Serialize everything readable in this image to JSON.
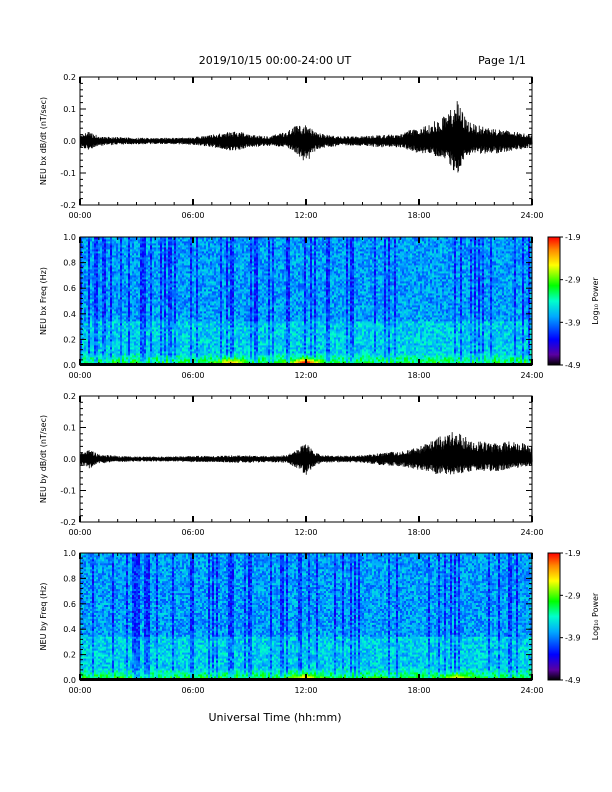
{
  "header": {
    "title": "2019/10/15  00:00-24:00 UT",
    "page": "Page 1/1"
  },
  "footer": {
    "xlabel": "Universal Time (hh:mm)"
  },
  "colors": {
    "axis": "#000000",
    "trace": "#000000"
  },
  "chart_data": [
    {
      "type": "line",
      "ylabel": "NEU bx dB/dt (nT/sec)",
      "xlabel": "Universal Time (hh:mm)",
      "xlim": [
        0,
        24
      ],
      "ylim": [
        -0.2,
        0.2
      ],
      "x_ticks": [
        "00:00",
        "06:00",
        "12:00",
        "18:00",
        "24:00"
      ],
      "y_ticks": [
        "-0.2",
        "-0.1",
        "0.0",
        "0.1",
        "0.2"
      ],
      "series": [
        {
          "x": [
            0,
            0.5,
            1,
            2,
            3,
            4,
            5,
            6,
            7,
            8,
            8.5,
            9,
            10,
            11,
            11.5,
            12,
            12.5,
            13,
            14,
            15,
            16,
            17,
            17.5,
            18,
            18.5,
            19,
            19.5,
            20,
            20.5,
            21,
            22,
            23,
            24
          ],
          "ymin": [
            -0.02,
            -0.03,
            -0.015,
            -0.012,
            -0.01,
            -0.01,
            -0.01,
            -0.012,
            -0.02,
            -0.03,
            -0.03,
            -0.02,
            -0.015,
            -0.02,
            -0.04,
            -0.07,
            -0.03,
            -0.02,
            -0.015,
            -0.015,
            -0.02,
            -0.02,
            -0.03,
            -0.04,
            -0.04,
            -0.05,
            -0.06,
            -0.11,
            -0.05,
            -0.04,
            -0.04,
            -0.03,
            -0.02
          ],
          "ymax": [
            0.02,
            0.03,
            0.015,
            0.012,
            0.01,
            0.01,
            0.01,
            0.012,
            0.02,
            0.03,
            0.03,
            0.02,
            0.015,
            0.03,
            0.05,
            0.05,
            0.03,
            0.02,
            0.015,
            0.015,
            0.02,
            0.02,
            0.035,
            0.04,
            0.05,
            0.07,
            0.08,
            0.13,
            0.07,
            0.05,
            0.04,
            0.03,
            0.02
          ]
        }
      ]
    },
    {
      "type": "heatmap",
      "ylabel": "NEU bx Freq (Hz)",
      "xlim": [
        0,
        24
      ],
      "ylim": [
        0,
        1.0
      ],
      "x_ticks": [
        "00:00",
        "06:00",
        "12:00",
        "18:00",
        "24:00"
      ],
      "y_ticks": [
        "0.0",
        "0.2",
        "0.4",
        "0.6",
        "0.8",
        "1.0"
      ],
      "colorbar": {
        "label": "Log₁₀ Power",
        "range": [
          -4.9,
          -1.9
        ],
        "ticks": [
          "-1.9",
          "-2.9",
          "-3.9",
          "-4.9"
        ]
      },
      "hotspots": [
        {
          "x": 8,
          "f": 0.02,
          "level": -2.4
        },
        {
          "x": 12,
          "f": 0.02,
          "level": -1.9
        }
      ]
    },
    {
      "type": "line",
      "ylabel": "NEU by dB/dt (nT/sec)",
      "xlim": [
        0,
        24
      ],
      "ylim": [
        -0.2,
        0.2
      ],
      "x_ticks": [
        "00:00",
        "06:00",
        "12:00",
        "18:00",
        "24:00"
      ],
      "y_ticks": [
        "-0.2",
        "-0.1",
        "0.0",
        "0.1",
        "0.2"
      ],
      "series": [
        {
          "x": [
            0,
            0.5,
            1,
            2,
            3,
            4,
            5,
            6,
            7,
            8,
            9,
            10,
            11,
            11.5,
            12,
            12.5,
            13,
            14,
            15,
            16,
            17,
            17.5,
            18,
            18.5,
            19,
            19.5,
            20,
            20.5,
            21,
            22,
            23,
            24
          ],
          "ymin": [
            -0.02,
            -0.03,
            -0.015,
            -0.01,
            -0.008,
            -0.008,
            -0.008,
            -0.01,
            -0.01,
            -0.012,
            -0.012,
            -0.01,
            -0.012,
            -0.03,
            -0.05,
            -0.02,
            -0.012,
            -0.01,
            -0.012,
            -0.02,
            -0.025,
            -0.03,
            -0.035,
            -0.04,
            -0.05,
            -0.05,
            -0.05,
            -0.04,
            -0.04,
            -0.04,
            -0.03,
            -0.02
          ],
          "ymax": [
            0.02,
            0.03,
            0.015,
            0.01,
            0.008,
            0.008,
            0.008,
            0.01,
            0.01,
            0.012,
            0.012,
            0.01,
            0.012,
            0.03,
            0.05,
            0.02,
            0.012,
            0.01,
            0.012,
            0.02,
            0.025,
            0.03,
            0.04,
            0.05,
            0.07,
            0.08,
            0.1,
            0.07,
            0.06,
            0.05,
            0.06,
            0.04
          ]
        }
      ]
    },
    {
      "type": "heatmap",
      "ylabel": "NEU by Freq (Hz)",
      "xlim": [
        0,
        24
      ],
      "ylim": [
        0,
        1.0
      ],
      "x_ticks": [
        "00:00",
        "06:00",
        "12:00",
        "18:00",
        "24:00"
      ],
      "y_ticks": [
        "0.0",
        "0.2",
        "0.4",
        "0.6",
        "0.8",
        "1.0"
      ],
      "colorbar": {
        "label": "Log₁₀ Power",
        "range": [
          -4.9,
          -1.9
        ],
        "ticks": [
          "-1.9",
          "-2.9",
          "-3.9",
          "-4.9"
        ]
      },
      "hotspots": [
        {
          "x": 12,
          "f": 0.02,
          "level": -2.5
        },
        {
          "x": 20,
          "f": 0.02,
          "level": -2.6
        }
      ]
    }
  ]
}
